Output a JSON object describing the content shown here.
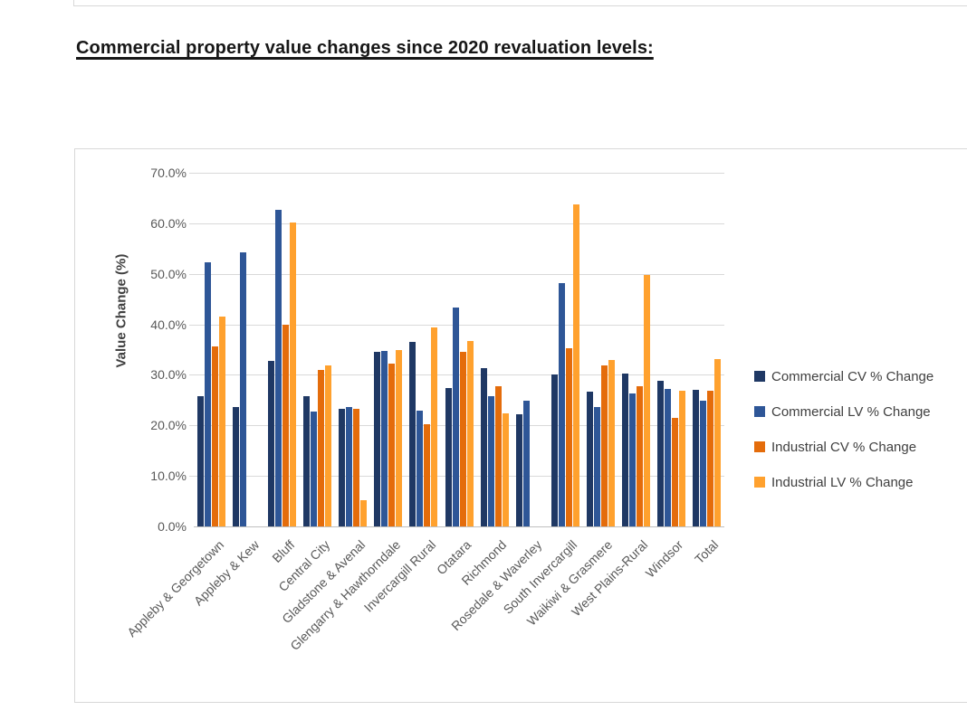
{
  "heading": "Commercial property value changes since 2020 revaluation levels:",
  "chart_data": {
    "type": "bar",
    "title": "",
    "xlabel": "",
    "ylabel": "Value Change (%)",
    "ylim": [
      0,
      70
    ],
    "ytick_step": 10,
    "ytick_labels": [
      "0.0%",
      "10.0%",
      "20.0%",
      "30.0%",
      "40.0%",
      "50.0%",
      "60.0%",
      "70.0%"
    ],
    "grid": true,
    "legend_position": "right",
    "categories": [
      "Appleby & Georgetown",
      "Appleby & Kew",
      "Bluff",
      "Central City",
      "Gladstone & Avenal",
      "Glengarry & Hawthorndale",
      "Invercargill Rural",
      "Otatara",
      "Richmond",
      "Rosedale & Waverley",
      "South Invercargill",
      "Waikiwi & Grasmere",
      "West Plains-Rural",
      "Windsor",
      "Total"
    ],
    "series": [
      {
        "name": "Commercial CV % Change",
        "color": "#1F3864",
        "values": [
          25.7,
          23.6,
          32.7,
          25.8,
          23.2,
          34.6,
          36.6,
          27.4,
          31.4,
          22.2,
          30.0,
          26.6,
          30.3,
          28.8,
          27.1
        ]
      },
      {
        "name": "Commercial LV % Change",
        "color": "#2E5697",
        "values": [
          52.3,
          54.3,
          62.7,
          22.7,
          23.6,
          34.8,
          22.9,
          43.3,
          25.8,
          24.8,
          48.2,
          23.6,
          26.3,
          27.3,
          24.8
        ]
      },
      {
        "name": "Industrial CV % Change",
        "color": "#E46C0B",
        "values": [
          35.6,
          null,
          40.0,
          31.0,
          23.2,
          32.3,
          20.3,
          34.6,
          27.7,
          null,
          35.2,
          31.9,
          27.8,
          21.4,
          26.8
        ]
      },
      {
        "name": "Industrial LV % Change",
        "color": "#FFA12E",
        "values": [
          41.5,
          null,
          60.2,
          31.9,
          5.2,
          34.9,
          39.4,
          36.7,
          22.4,
          null,
          63.8,
          33.0,
          49.7,
          26.9,
          33.2
        ]
      }
    ]
  }
}
